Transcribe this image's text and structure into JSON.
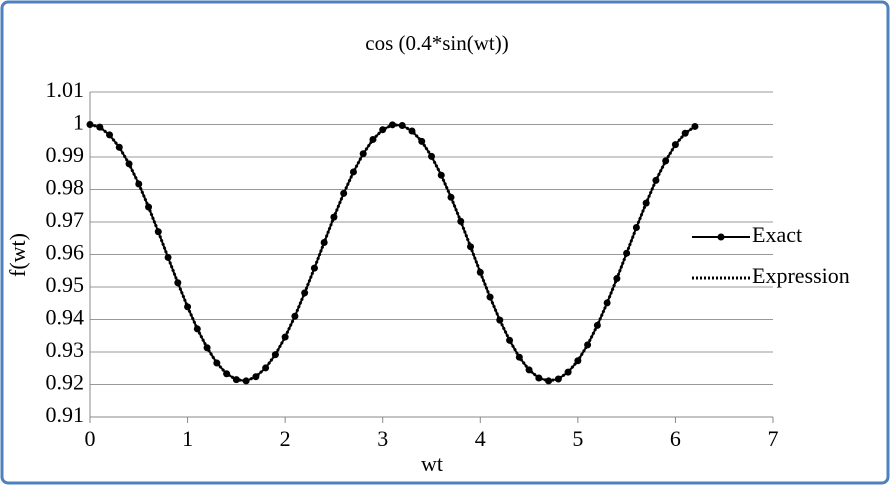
{
  "chart_data": {
    "type": "line",
    "title": "cos (0.4*sin(wt))",
    "x_label": "wt",
    "y_label": "f(wt)",
    "x": [
      0,
      0.1,
      0.2,
      0.3,
      0.4,
      0.5,
      0.6,
      0.7,
      0.8,
      0.9,
      1,
      1.1,
      1.2,
      1.3,
      1.4,
      1.5,
      1.6,
      1.7,
      1.8,
      1.9,
      2,
      2.1,
      2.2,
      2.3,
      2.4,
      2.5,
      2.6,
      2.7,
      2.8,
      2.9,
      3,
      3.1,
      3.2,
      3.3,
      3.4,
      3.5,
      3.6,
      3.7,
      3.8,
      3.9,
      4,
      4.1,
      4.2,
      4.3,
      4.4,
      4.5,
      4.6,
      4.7,
      4.8,
      4.9,
      5,
      5.1,
      5.2,
      5.3,
      5.4,
      5.5,
      5.6,
      5.7,
      5.8,
      5.9,
      6,
      6.1,
      6.2
    ],
    "series": [
      {
        "name": "Exact",
        "color": "#000000",
        "values": [
          1,
          0.9992,
          0.9968,
          0.993,
          0.9879,
          0.9817,
          0.9746,
          0.967,
          0.9591,
          0.9513,
          0.9439,
          0.9371,
          0.9313,
          0.9266,
          0.9233,
          0.9215,
          0.9211,
          0.9224,
          0.9251,
          0.9292,
          0.9346,
          0.941,
          0.9482,
          0.9558,
          0.9637,
          0.9715,
          0.9788,
          0.9854,
          0.991,
          0.9954,
          0.9984,
          0.9999,
          0.9997,
          0.998,
          0.9948,
          0.9902,
          0.9844,
          0.9776,
          0.9702,
          0.9624,
          0.9545,
          0.9469,
          0.9398,
          0.9336,
          0.9284,
          0.9245,
          0.922,
          0.9211,
          0.9217,
          0.9238,
          0.9273,
          0.9322,
          0.9382,
          0.9451,
          0.9526,
          0.9604,
          0.9683,
          0.9758,
          0.9828,
          0.9888,
          0.9938,
          0.9973,
          0.9994
        ]
      },
      {
        "name": "Expression",
        "color": "#000000",
        "values": [
          1,
          0.9992,
          0.9968,
          0.993,
          0.9879,
          0.9817,
          0.9746,
          0.967,
          0.9591,
          0.9513,
          0.9439,
          0.9371,
          0.9313,
          0.9266,
          0.9233,
          0.9215,
          0.9211,
          0.9224,
          0.9251,
          0.9292,
          0.9346,
          0.941,
          0.9482,
          0.9558,
          0.9637,
          0.9715,
          0.9788,
          0.9854,
          0.991,
          0.9954,
          0.9984,
          0.9999,
          0.9997,
          0.998,
          0.9948,
          0.9902,
          0.9844,
          0.9776,
          0.9702,
          0.9624,
          0.9545,
          0.9469,
          0.9398,
          0.9336,
          0.9284,
          0.9245,
          0.922,
          0.9211,
          0.9217,
          0.9238,
          0.9273,
          0.9322,
          0.9382,
          0.9451,
          0.9526,
          0.9604,
          0.9683,
          0.9758,
          0.9828,
          0.9888,
          0.9938,
          0.9973,
          0.9994
        ]
      }
    ],
    "xlim": [
      0,
      7
    ],
    "xticks": [
      0,
      1,
      2,
      3,
      4,
      5,
      6,
      7
    ],
    "ylim": [
      0.91,
      1.01
    ],
    "yticks": [
      0.91,
      0.92,
      0.93,
      0.94,
      0.95,
      0.96,
      0.97,
      0.98,
      0.99,
      1,
      1.01
    ],
    "grid": true,
    "legend": "right"
  }
}
